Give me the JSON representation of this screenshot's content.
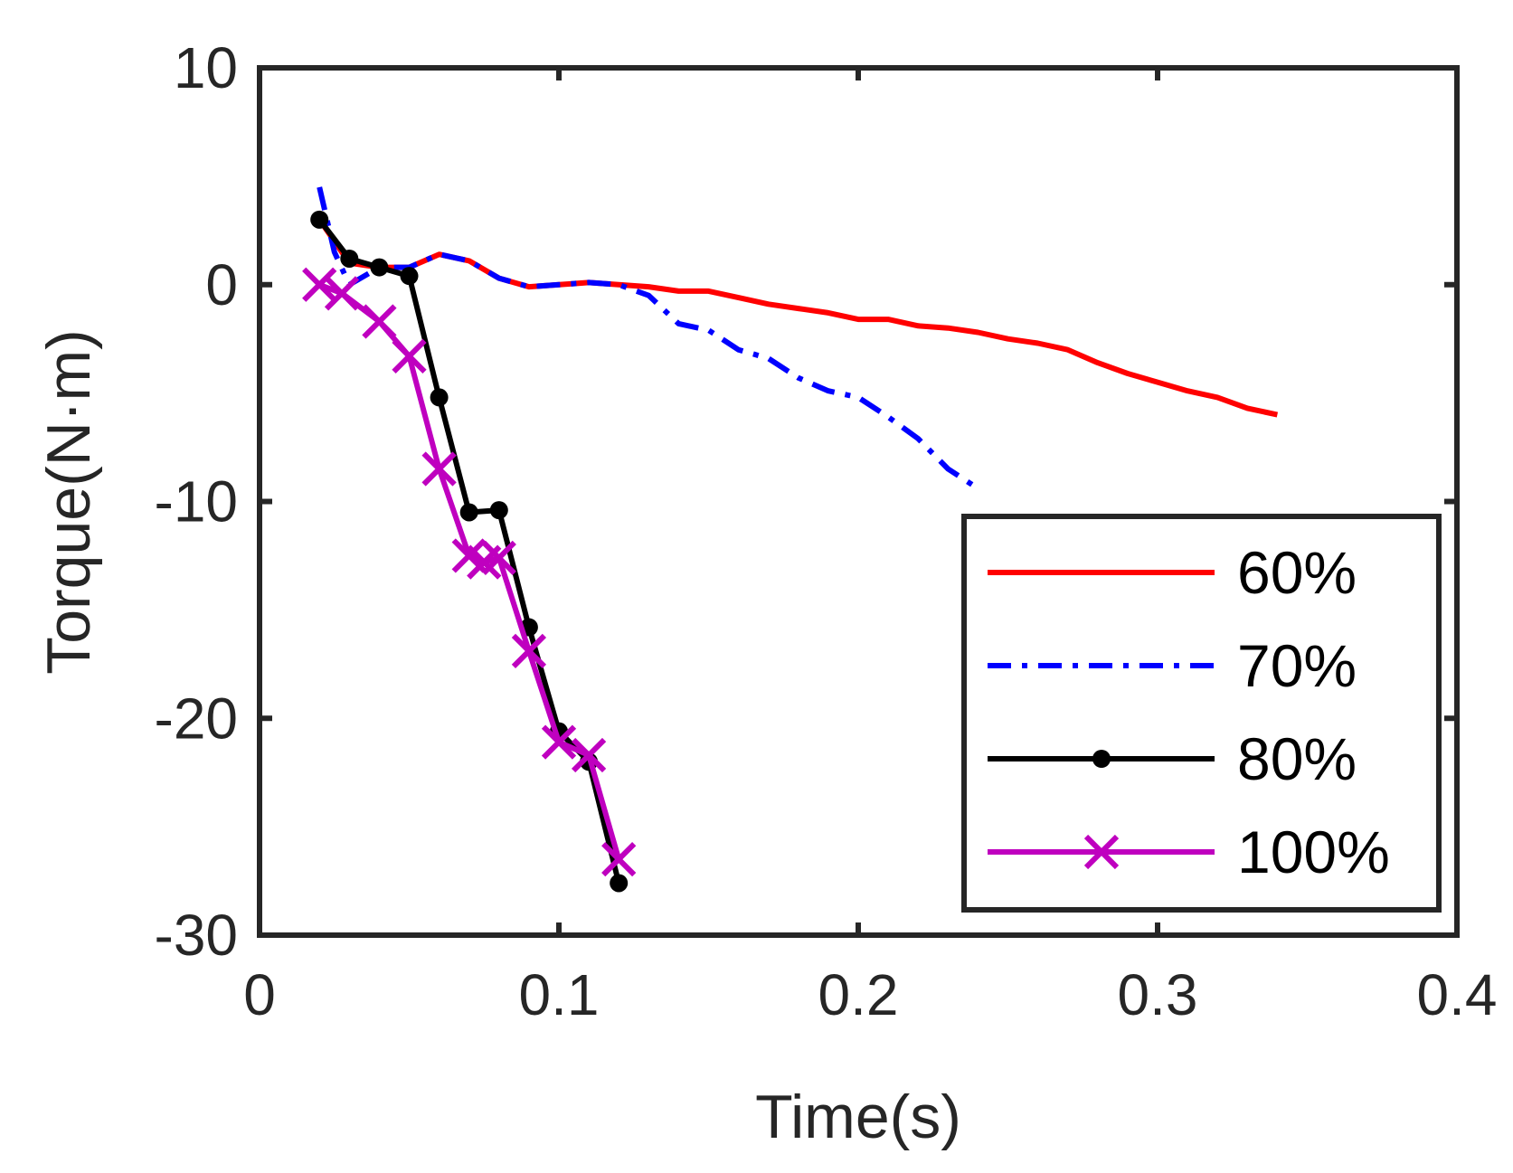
{
  "chart_data": {
    "type": "line",
    "title": "",
    "xlabel": "Time(s)",
    "ylabel": "Torque(N·m)",
    "xlim": [
      0,
      0.4
    ],
    "ylim": [
      -30,
      10
    ],
    "xticks": [
      "0",
      "0.1",
      "0.2",
      "0.3",
      "0.4"
    ],
    "yticks": [
      "10",
      "0",
      "-10",
      "-20",
      "-30"
    ],
    "grid": false,
    "legend_position": "bottom-right",
    "series": [
      {
        "name": "60%",
        "color": "#ff0000",
        "line_style": "solid",
        "marker": "none",
        "x": [
          0.02,
          0.025,
          0.03,
          0.04,
          0.05,
          0.06,
          0.07,
          0.08,
          0.09,
          0.1,
          0.11,
          0.12,
          0.13,
          0.14,
          0.15,
          0.16,
          0.17,
          0.18,
          0.19,
          0.2,
          0.21,
          0.22,
          0.23,
          0.24,
          0.25,
          0.26,
          0.27,
          0.28,
          0.29,
          0.3,
          0.31,
          0.32,
          0.33,
          0.34
        ],
        "y": [
          3.0,
          2.0,
          1.0,
          0.8,
          0.8,
          1.4,
          1.1,
          0.3,
          -0.1,
          0.0,
          0.1,
          0.0,
          -0.1,
          -0.3,
          -0.3,
          -0.6,
          -0.9,
          -1.1,
          -1.3,
          -1.6,
          -1.6,
          -1.9,
          -2.0,
          -2.2,
          -2.5,
          -2.7,
          -3.0,
          -3.6,
          -4.1,
          -4.5,
          -4.9,
          -5.2,
          -5.7,
          -6.0
        ]
      },
      {
        "name": "70%",
        "color": "#0000ff",
        "line_style": "dash-dot",
        "marker": "none",
        "x": [
          0.02,
          0.025,
          0.03,
          0.04,
          0.05,
          0.06,
          0.07,
          0.08,
          0.09,
          0.1,
          0.11,
          0.12,
          0.13,
          0.14,
          0.15,
          0.16,
          0.17,
          0.18,
          0.19,
          0.2,
          0.21,
          0.22,
          0.23,
          0.24
        ],
        "y": [
          4.5,
          1.5,
          0.0,
          0.8,
          0.8,
          1.4,
          1.1,
          0.3,
          -0.1,
          0.0,
          0.1,
          0.0,
          -0.5,
          -1.8,
          -2.1,
          -3.0,
          -3.4,
          -4.3,
          -4.9,
          -5.2,
          -6.1,
          -7.1,
          -8.5,
          -9.4
        ]
      },
      {
        "name": "80%",
        "color": "#000000",
        "line_style": "solid",
        "marker": "dot",
        "x": [
          0.02,
          0.03,
          0.04,
          0.05,
          0.06,
          0.07,
          0.08,
          0.09,
          0.1,
          0.11,
          0.12
        ],
        "y": [
          3.0,
          1.2,
          0.8,
          0.4,
          -5.2,
          -10.5,
          -10.4,
          -15.8,
          -20.6,
          -22.0,
          -27.6
        ]
      },
      {
        "name": "100%",
        "color": "#bf00bf",
        "line_style": "solid",
        "marker": "x",
        "x": [
          0.02,
          0.0275,
          0.04,
          0.05,
          0.06,
          0.07,
          0.075,
          0.08,
          0.09,
          0.1,
          0.11,
          0.12
        ],
        "y": [
          0.0,
          -0.4,
          -1.7,
          -3.3,
          -8.5,
          -12.5,
          -12.8,
          -12.6,
          -16.9,
          -21.1,
          -21.7,
          -26.5
        ]
      }
    ]
  }
}
